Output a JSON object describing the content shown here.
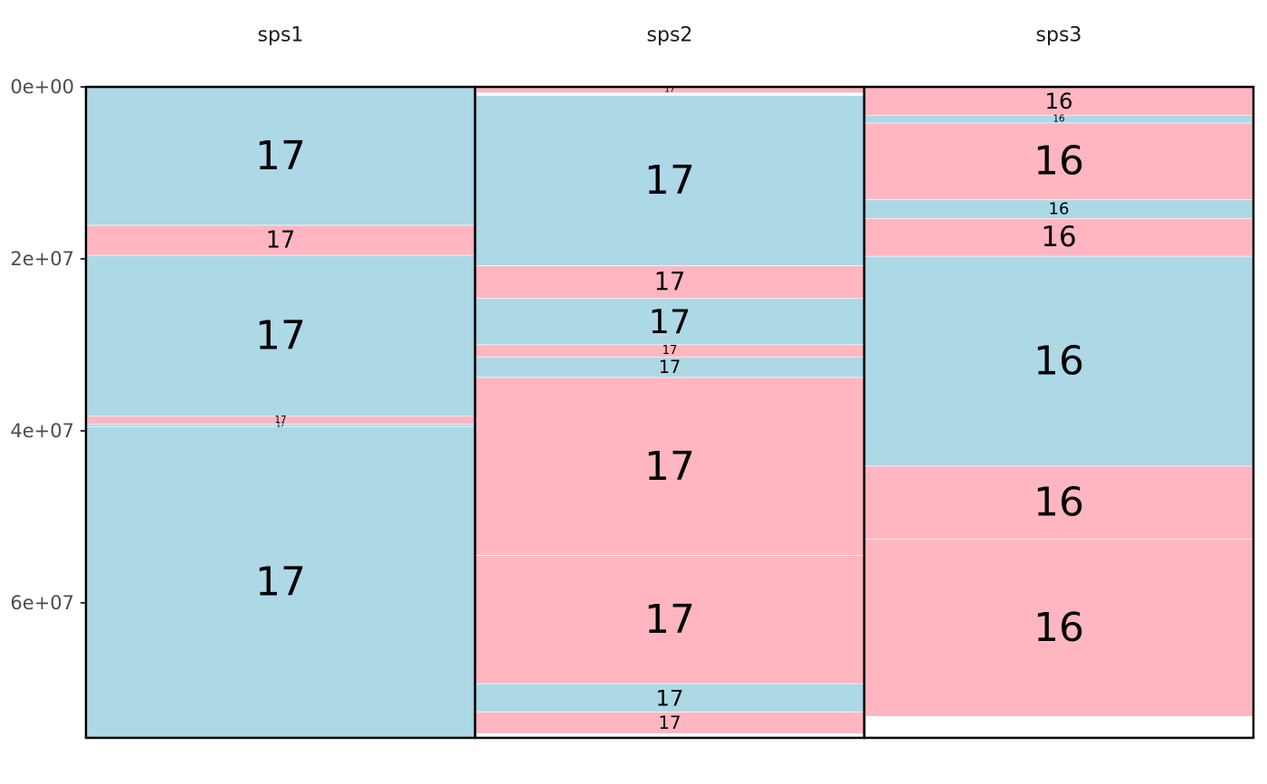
{
  "chart_data": {
    "type": "bar",
    "y_axis": {
      "range": [
        0,
        75700000
      ],
      "reversed": true,
      "ticks": [
        0,
        20000000,
        40000000,
        60000000
      ],
      "tick_labels": [
        "0e+00",
        "2e+07",
        "4e+07",
        "6e+07"
      ]
    },
    "grid": false,
    "colors": {
      "lightblue": "#add8e6",
      "pink": "#ffb6c1"
    },
    "facets": [
      {
        "title": "sps1",
        "segments": [
          {
            "start": 0,
            "end": 16100000,
            "label": "17",
            "color": "#add8e6"
          },
          {
            "start": 16100000,
            "end": 19600000,
            "label": "17",
            "color": "#ffb6c1"
          },
          {
            "start": 19600000,
            "end": 38300000,
            "label": "17",
            "color": "#add8e6"
          },
          {
            "start": 38300000,
            "end": 39200000,
            "label": "17",
            "color": "#ffb6c1"
          },
          {
            "start": 39200000,
            "end": 39500000,
            "label": "17",
            "color": "#add8e6"
          },
          {
            "start": 39500000,
            "end": 75700000,
            "label": "17",
            "color": "#add8e6"
          }
        ]
      },
      {
        "title": "sps2",
        "segments": [
          {
            "start": 0,
            "end": 700000,
            "label": "17",
            "color": "#ffb6c1"
          },
          {
            "start": 1000000,
            "end": 20800000,
            "label": "17",
            "color": "#add8e6"
          },
          {
            "start": 20800000,
            "end": 24600000,
            "label": "17",
            "color": "#ffb6c1"
          },
          {
            "start": 24600000,
            "end": 30000000,
            "label": "17",
            "color": "#add8e6"
          },
          {
            "start": 30000000,
            "end": 31400000,
            "label": "17",
            "color": "#ffb6c1"
          },
          {
            "start": 31400000,
            "end": 33800000,
            "label": "17",
            "color": "#add8e6"
          },
          {
            "start": 33800000,
            "end": 54500000,
            "label": "17",
            "color": "#ffb6c1"
          },
          {
            "start": 54500000,
            "end": 69400000,
            "label": "17",
            "color": "#ffb6c1"
          },
          {
            "start": 69400000,
            "end": 72700000,
            "label": "17",
            "color": "#add8e6"
          },
          {
            "start": 72700000,
            "end": 75200000,
            "label": "17",
            "color": "#ffb6c1"
          }
        ]
      },
      {
        "title": "sps3",
        "segments": [
          {
            "start": 0,
            "end": 3300000,
            "label": "16",
            "color": "#ffb6c1"
          },
          {
            "start": 3300000,
            "end": 4200000,
            "label": "16",
            "color": "#add8e6"
          },
          {
            "start": 4200000,
            "end": 13100000,
            "label": "16",
            "color": "#ffb6c1"
          },
          {
            "start": 13100000,
            "end": 15300000,
            "label": "16",
            "color": "#add8e6"
          },
          {
            "start": 15300000,
            "end": 19700000,
            "label": "16",
            "color": "#ffb6c1"
          },
          {
            "start": 19700000,
            "end": 44100000,
            "label": "16",
            "color": "#add8e6"
          },
          {
            "start": 44100000,
            "end": 52600000,
            "label": "16",
            "color": "#ffb6c1"
          },
          {
            "start": 52600000,
            "end": 73200000,
            "label": "16",
            "color": "#ffb6c1"
          }
        ]
      }
    ]
  }
}
